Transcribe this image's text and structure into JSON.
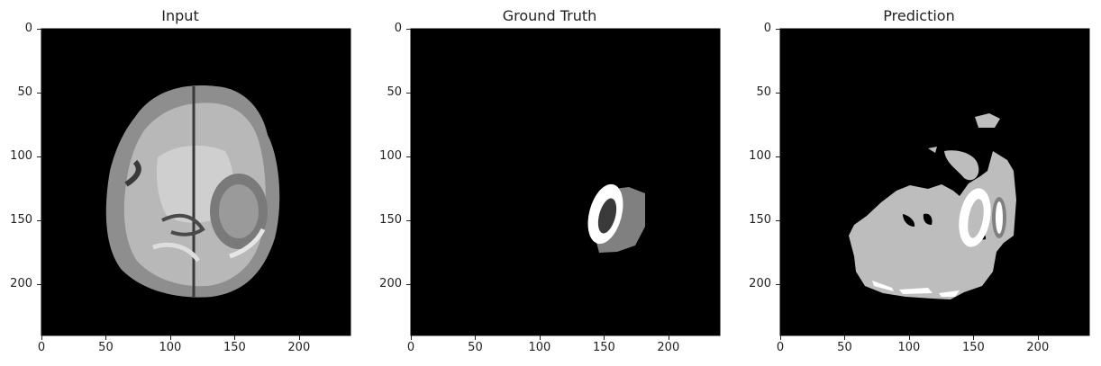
{
  "panels": [
    {
      "title": "Input",
      "kind": "mri"
    },
    {
      "title": "Ground Truth",
      "kind": "gt"
    },
    {
      "title": "Prediction",
      "kind": "pred"
    }
  ],
  "axes": {
    "y_ticks": [
      "0",
      "50",
      "100",
      "150",
      "200"
    ],
    "x_ticks": [
      "0",
      "50",
      "100",
      "150",
      "200"
    ]
  },
  "colors": {
    "background": "#000000",
    "mask_white": "#ffffff",
    "mask_gray": "#808080",
    "mask_dark": "#3a3a3a",
    "pred_light": "#bdbdbd"
  }
}
